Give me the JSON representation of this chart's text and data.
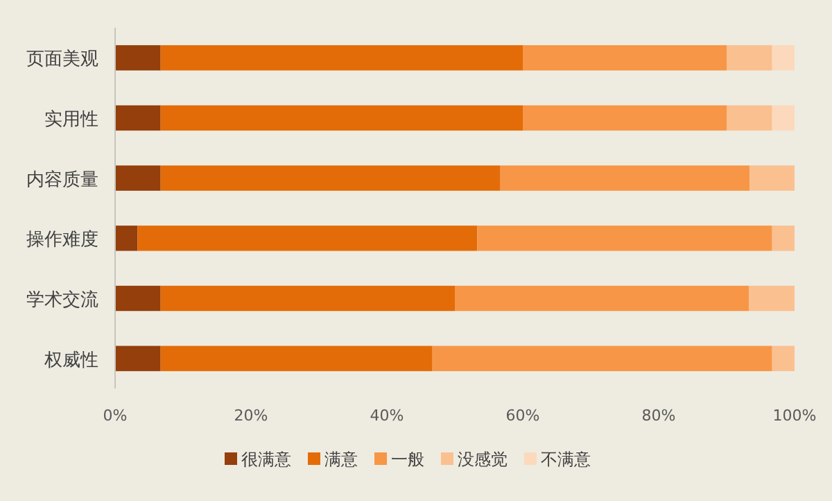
{
  "chart_data": {
    "type": "bar",
    "orientation": "horizontal",
    "stacked": true,
    "categories": [
      "页面美观",
      "实用性",
      "内容质量",
      "操作难度",
      "学术交流",
      "权威性"
    ],
    "series": [
      {
        "name": "很满意",
        "color": "#943f0c",
        "values": [
          6.7,
          6.7,
          6.7,
          3.3,
          6.7,
          6.7
        ]
      },
      {
        "name": "满意",
        "color": "#e36c09",
        "values": [
          53.3,
          53.3,
          50,
          50,
          43.3,
          40
        ]
      },
      {
        "name": "一般",
        "color": "#f79646",
        "values": [
          30,
          30,
          36.7,
          43.4,
          43.3,
          50
        ]
      },
      {
        "name": "没感觉",
        "color": "#fac090",
        "values": [
          6.7,
          6.7,
          6.6,
          3.3,
          6.7,
          3.3
        ]
      },
      {
        "name": "不满意",
        "color": "#fcd9bc",
        "values": [
          3.3,
          3.3,
          0,
          0,
          0,
          0
        ]
      }
    ],
    "xlim": [
      0,
      100
    ],
    "xticks": [
      {
        "value": 0,
        "label": "0%"
      },
      {
        "value": 20,
        "label": "20%"
      },
      {
        "value": 40,
        "label": "40%"
      },
      {
        "value": 60,
        "label": "60%"
      },
      {
        "value": 80,
        "label": "80%"
      },
      {
        "value": 100,
        "label": "100%"
      }
    ],
    "grid": false,
    "legend": "bottom"
  }
}
